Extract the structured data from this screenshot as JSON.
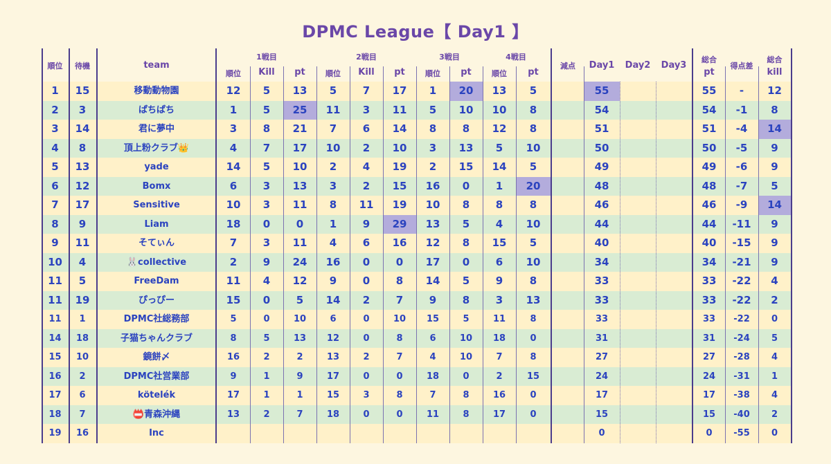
{
  "title": "DPMC  League【 Day1 】",
  "headers": {
    "rank": "順位",
    "wait": "待機",
    "team": "team",
    "match1": "1戦目",
    "match2": "2戦目",
    "match3": "3戦目",
    "match4": "4戦目",
    "sub_rank": "順位",
    "sub_kill": "Kill",
    "sub_pt": "pt",
    "penalty": "減点",
    "day1": "Day1",
    "day2": "Day2",
    "day3": "Day3",
    "total_top": "総合",
    "total_pt": "pt",
    "diff": "得点差",
    "total_kill_top": "総合",
    "total_kill_bottom": "kill"
  },
  "rows": [
    {
      "rank": "1",
      "wait": "15",
      "team": "移動動物園",
      "m1r": "12",
      "m1k": "5",
      "m1p": "13",
      "m2r": "5",
      "m2k": "7",
      "m2p": "17",
      "m3r": "1",
      "m3p": "20",
      "m4r": "13",
      "m4p": "5",
      "pen": "",
      "day1": "55",
      "day2": "",
      "day3": "",
      "tpt": "55",
      "diff": "-",
      "tk": "12"
    },
    {
      "rank": "2",
      "wait": "3",
      "team": "ぱちぱち",
      "m1r": "1",
      "m1k": "5",
      "m1p": "25",
      "m2r": "11",
      "m2k": "3",
      "m2p": "11",
      "m3r": "5",
      "m3p": "10",
      "m4r": "10",
      "m4p": "8",
      "pen": "",
      "day1": "54",
      "day2": "",
      "day3": "",
      "tpt": "54",
      "diff": "-1",
      "tk": "8"
    },
    {
      "rank": "3",
      "wait": "14",
      "team": "君に夢中",
      "m1r": "3",
      "m1k": "8",
      "m1p": "21",
      "m2r": "7",
      "m2k": "6",
      "m2p": "14",
      "m3r": "8",
      "m3p": "8",
      "m4r": "12",
      "m4p": "8",
      "pen": "",
      "day1": "51",
      "day2": "",
      "day3": "",
      "tpt": "51",
      "diff": "-4",
      "tk": "14"
    },
    {
      "rank": "4",
      "wait": "8",
      "team": "頂上粉クラブ👑",
      "m1r": "4",
      "m1k": "7",
      "m1p": "17",
      "m2r": "10",
      "m2k": "2",
      "m2p": "10",
      "m3r": "3",
      "m3p": "13",
      "m4r": "5",
      "m4p": "10",
      "pen": "",
      "day1": "50",
      "day2": "",
      "day3": "",
      "tpt": "50",
      "diff": "-5",
      "tk": "9"
    },
    {
      "rank": "5",
      "wait": "13",
      "team": "yade",
      "m1r": "14",
      "m1k": "5",
      "m1p": "10",
      "m2r": "2",
      "m2k": "4",
      "m2p": "19",
      "m3r": "2",
      "m3p": "15",
      "m4r": "14",
      "m4p": "5",
      "pen": "",
      "day1": "49",
      "day2": "",
      "day3": "",
      "tpt": "49",
      "diff": "-6",
      "tk": "9"
    },
    {
      "rank": "6",
      "wait": "12",
      "team": "Bomx",
      "m1r": "6",
      "m1k": "3",
      "m1p": "13",
      "m2r": "3",
      "m2k": "2",
      "m2p": "15",
      "m3r": "16",
      "m3p": "0",
      "m4r": "1",
      "m4p": "20",
      "pen": "",
      "day1": "48",
      "day2": "",
      "day3": "",
      "tpt": "48",
      "diff": "-7",
      "tk": "5"
    },
    {
      "rank": "7",
      "wait": "17",
      "team": "Sensitive",
      "m1r": "10",
      "m1k": "3",
      "m1p": "11",
      "m2r": "8",
      "m2k": "11",
      "m2p": "19",
      "m3r": "10",
      "m3p": "8",
      "m4r": "8",
      "m4p": "8",
      "pen": "",
      "day1": "46",
      "day2": "",
      "day3": "",
      "tpt": "46",
      "diff": "-9",
      "tk": "14"
    },
    {
      "rank": "8",
      "wait": "9",
      "team": "Liam",
      "m1r": "18",
      "m1k": "0",
      "m1p": "0",
      "m2r": "1",
      "m2k": "9",
      "m2p": "29",
      "m3r": "13",
      "m3p": "5",
      "m4r": "4",
      "m4p": "10",
      "pen": "",
      "day1": "44",
      "day2": "",
      "day3": "",
      "tpt": "44",
      "diff": "-11",
      "tk": "9"
    },
    {
      "rank": "9",
      "wait": "11",
      "team": "そてぃん",
      "m1r": "7",
      "m1k": "3",
      "m1p": "11",
      "m2r": "4",
      "m2k": "6",
      "m2p": "16",
      "m3r": "12",
      "m3p": "8",
      "m4r": "15",
      "m4p": "5",
      "pen": "",
      "day1": "40",
      "day2": "",
      "day3": "",
      "tpt": "40",
      "diff": "-15",
      "tk": "9"
    },
    {
      "rank": "10",
      "wait": "4",
      "team": "🐰collective",
      "m1r": "2",
      "m1k": "9",
      "m1p": "24",
      "m2r": "16",
      "m2k": "0",
      "m2p": "0",
      "m3r": "17",
      "m3p": "0",
      "m4r": "6",
      "m4p": "10",
      "pen": "",
      "day1": "34",
      "day2": "",
      "day3": "",
      "tpt": "34",
      "diff": "-21",
      "tk": "9"
    },
    {
      "rank": "11",
      "wait": "5",
      "team": "FreeDam",
      "m1r": "11",
      "m1k": "4",
      "m1p": "12",
      "m2r": "9",
      "m2k": "0",
      "m2p": "8",
      "m3r": "14",
      "m3p": "5",
      "m4r": "9",
      "m4p": "8",
      "pen": "",
      "day1": "33",
      "day2": "",
      "day3": "",
      "tpt": "33",
      "diff": "-22",
      "tk": "4"
    },
    {
      "rank": "11",
      "wait": "19",
      "team": "ぴっぴー",
      "m1r": "15",
      "m1k": "0",
      "m1p": "5",
      "m2r": "14",
      "m2k": "2",
      "m2p": "7",
      "m3r": "9",
      "m3p": "8",
      "m4r": "3",
      "m4p": "13",
      "pen": "",
      "day1": "33",
      "day2": "",
      "day3": "",
      "tpt": "33",
      "diff": "-22",
      "tk": "2"
    },
    {
      "rank": "11",
      "wait": "1",
      "team": "DPMC社総務部",
      "m1r": "5",
      "m1k": "0",
      "m1p": "10",
      "m2r": "6",
      "m2k": "0",
      "m2p": "10",
      "m3r": "15",
      "m3p": "5",
      "m4r": "11",
      "m4p": "8",
      "pen": "",
      "day1": "33",
      "day2": "",
      "day3": "",
      "tpt": "33",
      "diff": "-22",
      "tk": "0"
    },
    {
      "rank": "14",
      "wait": "18",
      "team": "子猫ちゃんクラブ",
      "m1r": "8",
      "m1k": "5",
      "m1p": "13",
      "m2r": "12",
      "m2k": "0",
      "m2p": "8",
      "m3r": "6",
      "m3p": "10",
      "m4r": "18",
      "m4p": "0",
      "pen": "",
      "day1": "31",
      "day2": "",
      "day3": "",
      "tpt": "31",
      "diff": "-24",
      "tk": "5"
    },
    {
      "rank": "15",
      "wait": "10",
      "team": "鏡餅〆",
      "m1r": "16",
      "m1k": "2",
      "m1p": "2",
      "m2r": "13",
      "m2k": "2",
      "m2p": "7",
      "m3r": "4",
      "m3p": "10",
      "m4r": "7",
      "m4p": "8",
      "pen": "",
      "day1": "27",
      "day2": "",
      "day3": "",
      "tpt": "27",
      "diff": "-28",
      "tk": "4"
    },
    {
      "rank": "16",
      "wait": "2",
      "team": "DPMC社営業部",
      "m1r": "9",
      "m1k": "1",
      "m1p": "9",
      "m2r": "17",
      "m2k": "0",
      "m2p": "0",
      "m3r": "18",
      "m3p": "0",
      "m4r": "2",
      "m4p": "15",
      "pen": "",
      "day1": "24",
      "day2": "",
      "day3": "",
      "tpt": "24",
      "diff": "-31",
      "tk": "1"
    },
    {
      "rank": "17",
      "wait": "6",
      "team": "kötelék",
      "m1r": "17",
      "m1k": "1",
      "m1p": "1",
      "m2r": "15",
      "m2k": "3",
      "m2p": "8",
      "m3r": "7",
      "m3p": "8",
      "m4r": "16",
      "m4p": "0",
      "pen": "",
      "day1": "17",
      "day2": "",
      "day3": "",
      "tpt": "17",
      "diff": "-38",
      "tk": "4"
    },
    {
      "rank": "18",
      "wait": "7",
      "team": "📛青森沖縄",
      "m1r": "13",
      "m1k": "2",
      "m1p": "7",
      "m2r": "18",
      "m2k": "0",
      "m2p": "0",
      "m3r": "11",
      "m3p": "8",
      "m4r": "17",
      "m4p": "0",
      "pen": "",
      "day1": "15",
      "day2": "",
      "day3": "",
      "tpt": "15",
      "diff": "-40",
      "tk": "2"
    },
    {
      "rank": "19",
      "wait": "16",
      "team": "Inc",
      "m1r": "",
      "m1k": "",
      "m1p": "",
      "m2r": "",
      "m2k": "",
      "m2p": "",
      "m3r": "",
      "m3p": "",
      "m4r": "",
      "m4p": "",
      "pen": "",
      "day1": "0",
      "day2": "",
      "day3": "",
      "tpt": "0",
      "diff": "-55",
      "tk": "0"
    }
  ],
  "highlights": [
    {
      "row": 0,
      "col": "m3p"
    },
    {
      "row": 0,
      "col": "day1"
    },
    {
      "row": 1,
      "col": "m1p"
    },
    {
      "row": 2,
      "col": "tk"
    },
    {
      "row": 5,
      "col": "m4p"
    },
    {
      "row": 6,
      "col": "tk"
    },
    {
      "row": 7,
      "col": "m2p"
    }
  ]
}
